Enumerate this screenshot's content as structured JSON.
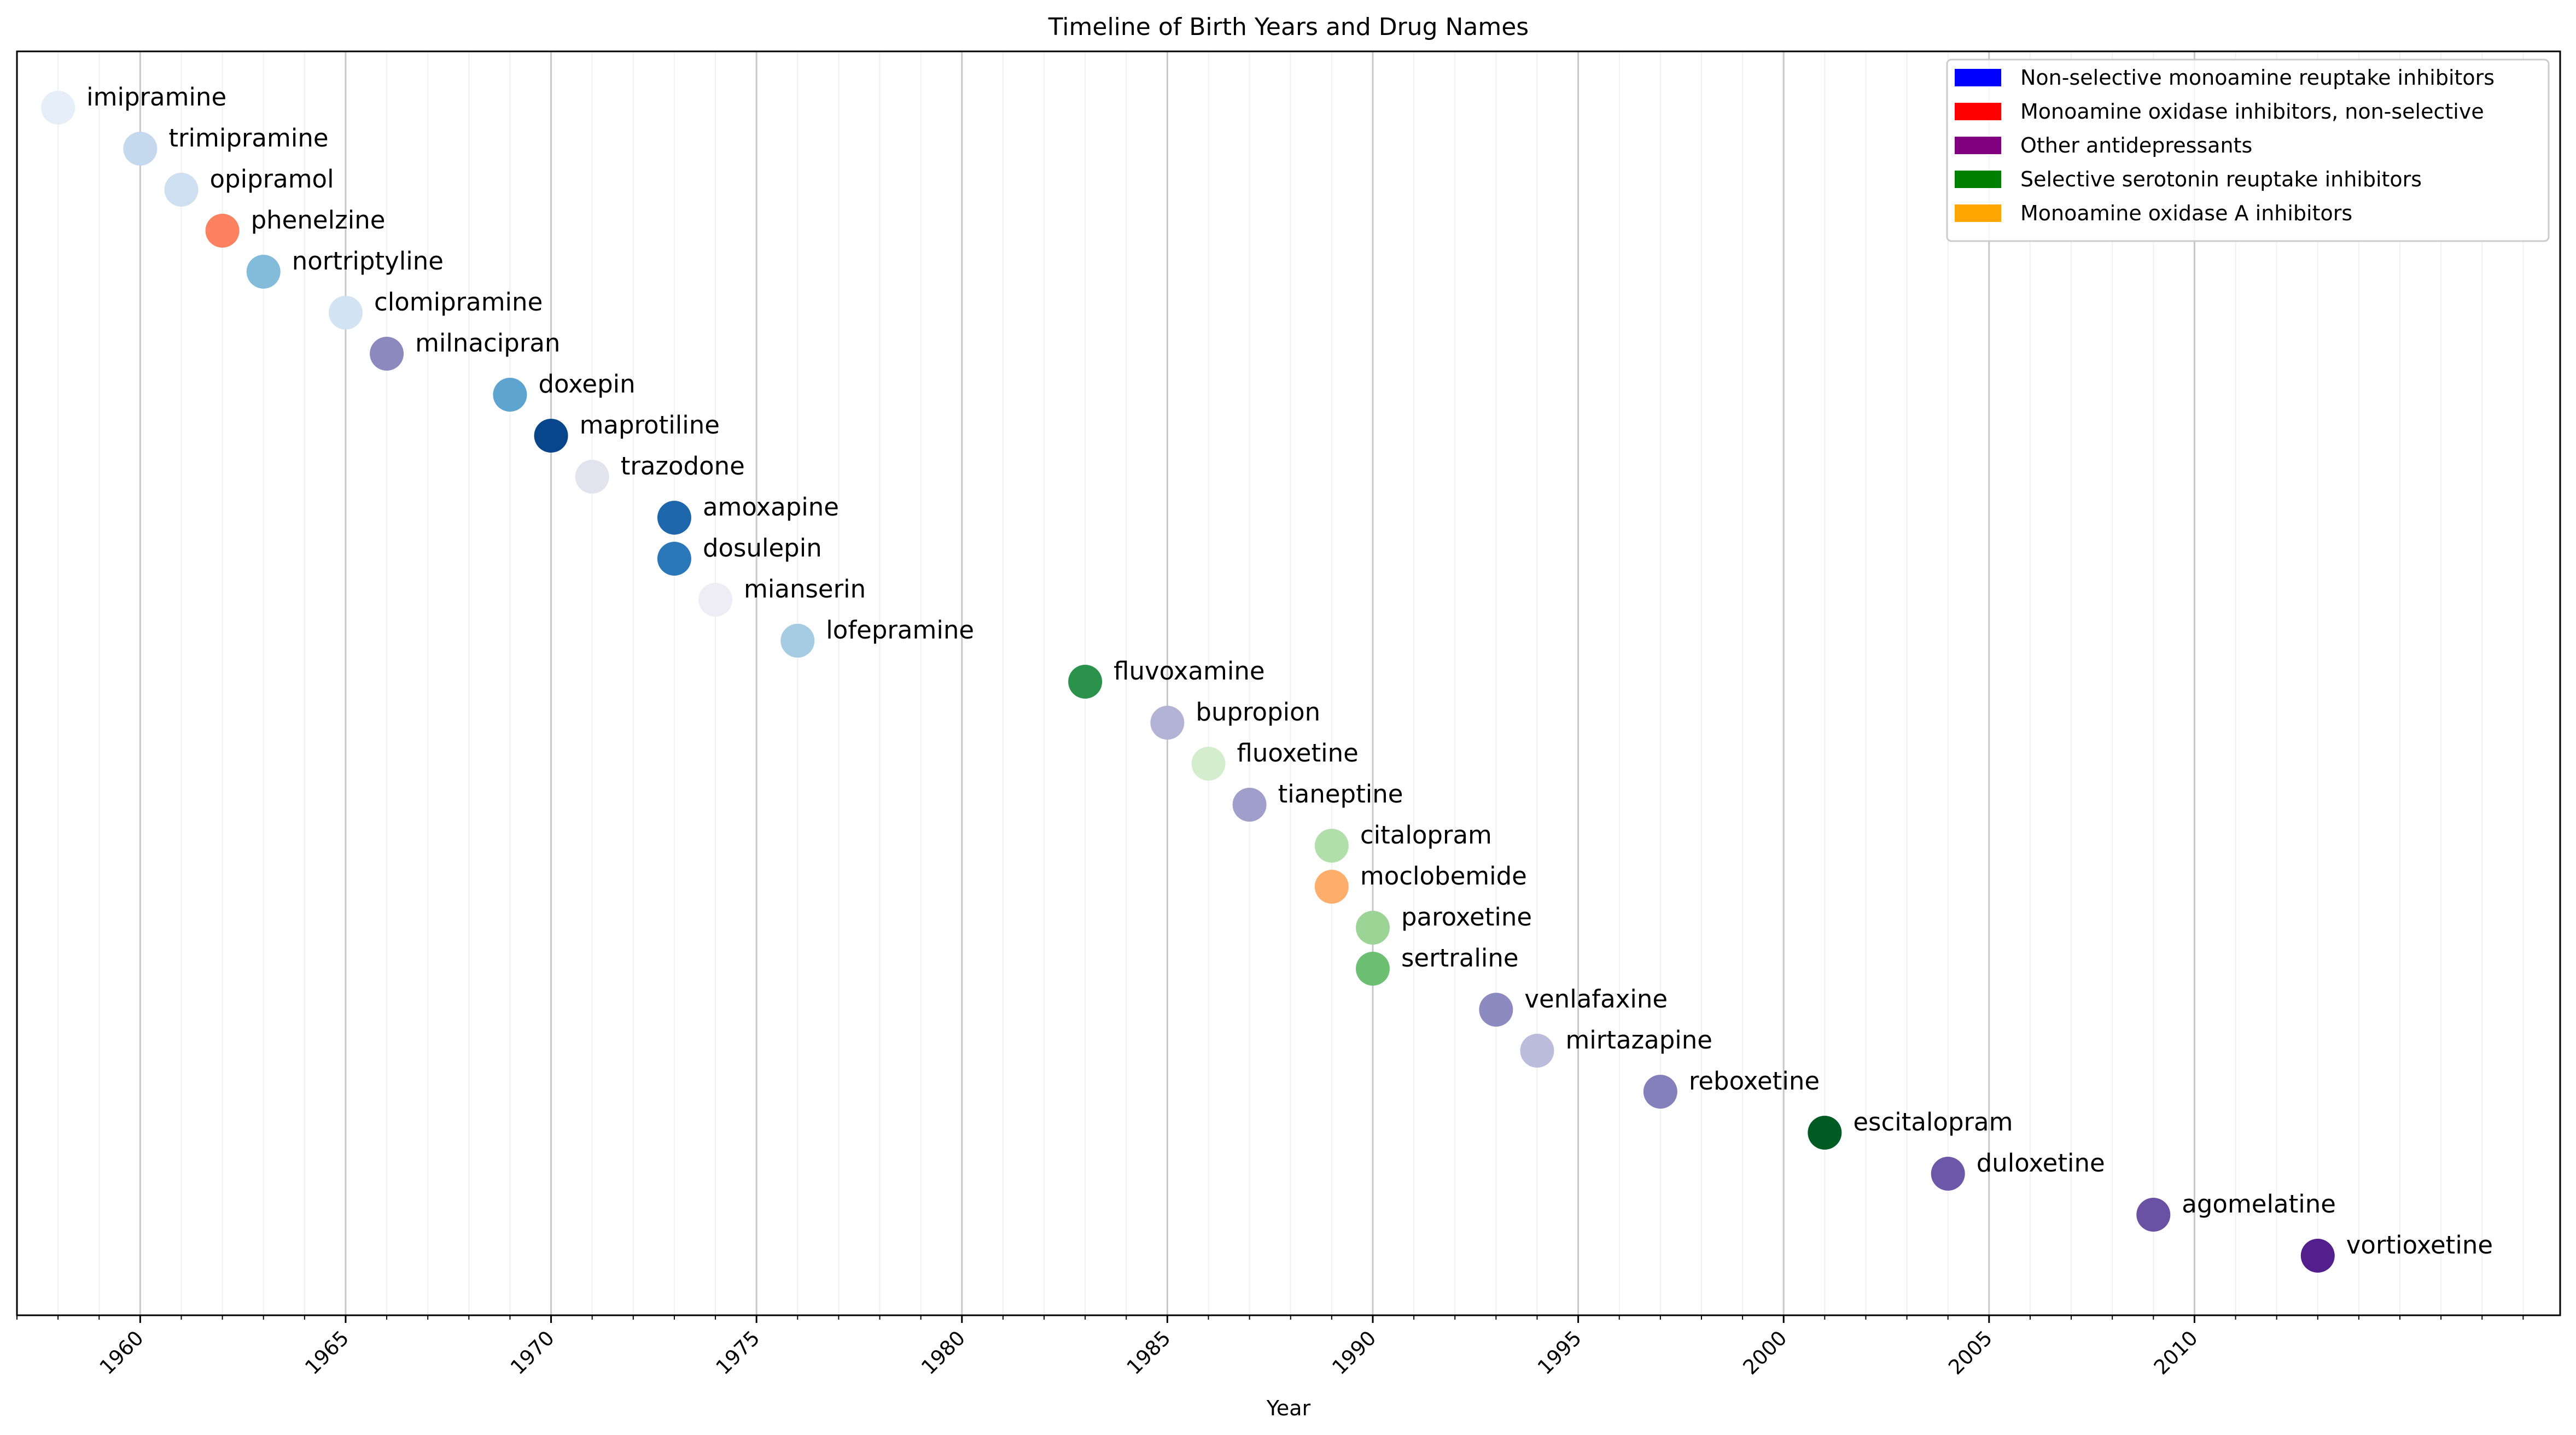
{
  "chart_data": {
    "type": "scatter",
    "title": "Timeline of Birth Years and Drug Names",
    "xlabel": "Year",
    "ylabel": "",
    "xlim": [
      1957,
      2018.9
    ],
    "x_ticks": [
      1960,
      1965,
      1970,
      1975,
      1980,
      1985,
      1990,
      1995,
      2000,
      2005,
      2010
    ],
    "x_minor_step": 1,
    "grid": true,
    "legend_position": "top-right",
    "legend": [
      {
        "label": "Non-selective monoamine reuptake inhibitors",
        "color": "#0000ff"
      },
      {
        "label": "Monoamine oxidase inhibitors, non-selective",
        "color": "#ff0000"
      },
      {
        "label": "Other antidepressants",
        "color": "#800080"
      },
      {
        "label": "Selective serotonin reuptake inhibitors",
        "color": "#008000"
      },
      {
        "label": "Monoamine oxidase A inhibitors",
        "color": "#ffa500"
      }
    ],
    "points": [
      {
        "name": "imipramine",
        "year": 1958,
        "color": "#e6eff9"
      },
      {
        "name": "trimipramine",
        "year": 1960,
        "color": "#c4d9ee"
      },
      {
        "name": "opipramol",
        "year": 1961,
        "color": "#cde0f1"
      },
      {
        "name": "phenelzine",
        "year": 1962,
        "color": "#fc8160"
      },
      {
        "name": "nortriptyline",
        "year": 1963,
        "color": "#83bbdb"
      },
      {
        "name": "clomipramine",
        "year": 1965,
        "color": "#d2e3f3"
      },
      {
        "name": "milnacipran",
        "year": 1966,
        "color": "#8c89bf"
      },
      {
        "name": "doxepin",
        "year": 1969,
        "color": "#5da4d0"
      },
      {
        "name": "maprotiline",
        "year": 1970,
        "color": "#08468c"
      },
      {
        "name": "trazodone",
        "year": 1971,
        "color": "#e3e2ef"
      },
      {
        "name": "amoxapine",
        "year": 1973,
        "color": "#1f67ad"
      },
      {
        "name": "dosulepin",
        "year": 1973,
        "color": "#2a78b9"
      },
      {
        "name": "mianserin",
        "year": 1974,
        "color": "#eeedf5"
      },
      {
        "name": "lofepramine",
        "year": 1976,
        "color": "#a6cce4"
      },
      {
        "name": "fluvoxamine",
        "year": 1983,
        "color": "#2a924a"
      },
      {
        "name": "bupropion",
        "year": 1985,
        "color": "#b3b3d6"
      },
      {
        "name": "fluoxetine",
        "year": 1986,
        "color": "#d3eecd"
      },
      {
        "name": "tianeptine",
        "year": 1987,
        "color": "#a09ecb"
      },
      {
        "name": "citalopram",
        "year": 1989,
        "color": "#b1dfaa"
      },
      {
        "name": "moclobemide",
        "year": 1989,
        "color": "#fdae6b"
      },
      {
        "name": "paroxetine",
        "year": 1990,
        "color": "#9cd495"
      },
      {
        "name": "sertraline",
        "year": 1990,
        "color": "#6dc072"
      },
      {
        "name": "venlafaxine",
        "year": 1993,
        "color": "#8d89c1"
      },
      {
        "name": "mirtazapine",
        "year": 1994,
        "color": "#bcbcdd"
      },
      {
        "name": "reboxetine",
        "year": 1997,
        "color": "#8480bc"
      },
      {
        "name": "escitalopram",
        "year": 2001,
        "color": "#005a24"
      },
      {
        "name": "duloxetine",
        "year": 2004,
        "color": "#6c58a8"
      },
      {
        "name": "agomelatine",
        "year": 2009,
        "color": "#6a51a3"
      },
      {
        "name": "vortioxetine",
        "year": 2013,
        "color": "#531f8c"
      }
    ]
  }
}
